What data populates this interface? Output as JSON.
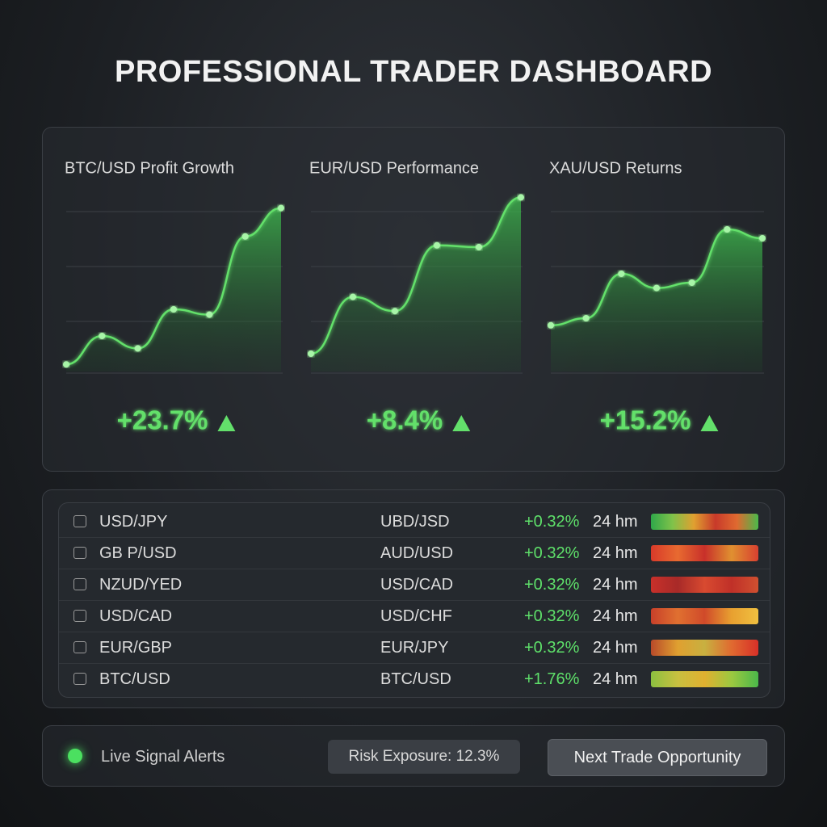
{
  "header": {
    "title": "PROFESSIONAL TRADER DASHBOARD"
  },
  "chart_data": [
    {
      "type": "line",
      "title": "BTC/USD Profit Growth",
      "values": [
        4,
        20,
        13,
        35,
        32,
        76,
        92
      ],
      "ylim": [
        0,
        100
      ],
      "color": "#63e06b",
      "grid": true,
      "change": "+23.7%"
    },
    {
      "type": "line",
      "title": "EUR/USD Performance",
      "values": [
        10,
        42,
        34,
        71,
        70,
        98
      ],
      "ylim": [
        0,
        100
      ],
      "color": "#63e06b",
      "grid": true,
      "change": "+8.4%"
    },
    {
      "type": "line",
      "title": "XAU/USD Returns",
      "values": [
        26,
        30,
        55,
        47,
        50,
        80,
        75
      ],
      "ylim": [
        0,
        100
      ],
      "color": "#63e06b",
      "grid": true,
      "change": "+15.2%"
    }
  ],
  "table": {
    "rows": [
      [
        "USD/JPY",
        "UBD/JSD",
        "+0.32%",
        "24 hm"
      ],
      [
        "GB P/USD",
        "AUD/USD",
        "+0.32%",
        "24 hm"
      ],
      [
        "NZUD/YED",
        "USD/CAD",
        "+0.32%",
        "24 hm"
      ],
      [
        "USD/CAD",
        "USD/CHF",
        "+0.32%",
        "24 hm"
      ],
      [
        "EUR/GBP",
        "EUR/JPY",
        "+0.32%",
        "24 hm"
      ],
      [
        "BTC/USD",
        "BTC/USD",
        "+1.76%",
        "24 hm"
      ]
    ]
  },
  "footer": {
    "alerts": "Live Signal Alerts",
    "risk": "Risk Exposure: 12.3%",
    "button": "Next Trade Opportunity"
  }
}
